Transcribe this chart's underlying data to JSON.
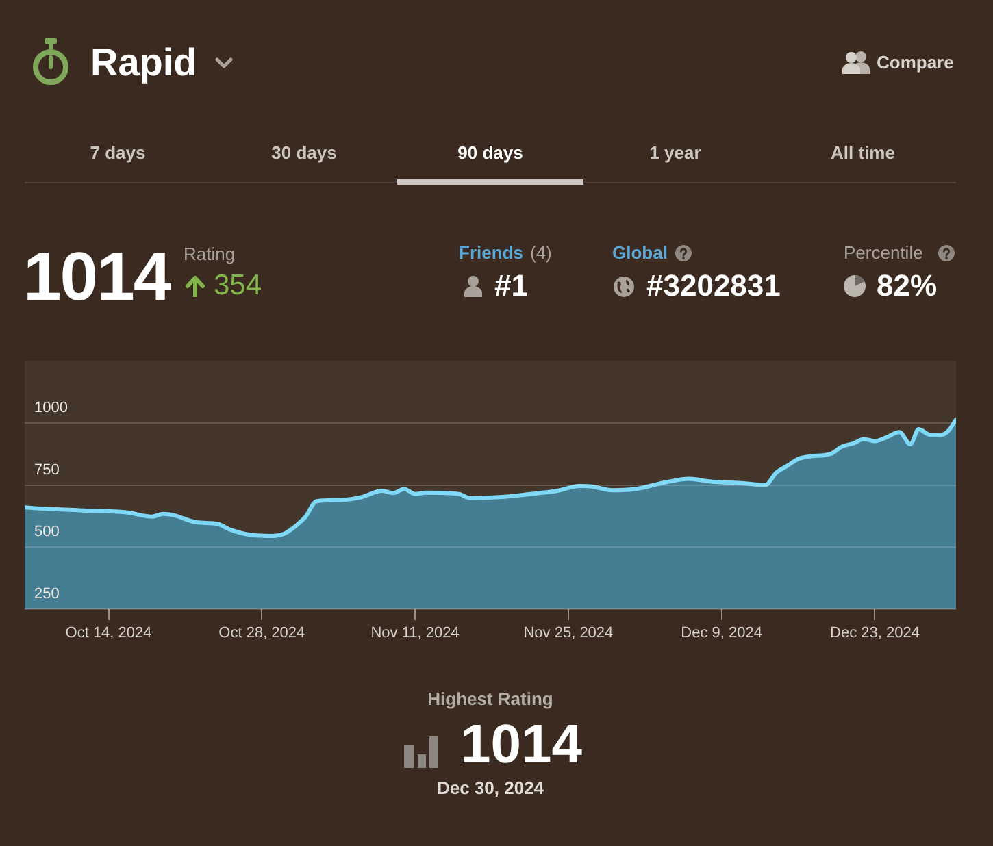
{
  "chart_data": {
    "type": "area",
    "title": "Rapid",
    "annotations": [
      "Compare",
      "7 days",
      "30 days",
      "90 days",
      "1 year",
      "All time",
      "1014",
      "Rating",
      "354",
      "Friends",
      "(4)",
      "#1",
      "Global",
      "#3202831",
      "Percentile",
      "82%",
      "Highest Rating",
      "1014",
      "Dec 30, 2024"
    ],
    "x": [
      "2024-10-06T08:00",
      "2024-10-08",
      "2024-10-12",
      "2024-10-16",
      "2024-10-17",
      "2024-10-18",
      "2024-10-19",
      "2024-10-20",
      "2024-10-22",
      "2024-10-24",
      "2024-10-25",
      "2024-10-27",
      "2024-10-29",
      "2024-10-30",
      "2024-10-31",
      "2024-11-01",
      "2024-11-02",
      "2024-11-04",
      "2024-11-06",
      "2024-11-08",
      "2024-11-09",
      "2024-11-10",
      "2024-11-11",
      "2024-11-12",
      "2024-11-15",
      "2024-11-16",
      "2024-11-19",
      "2024-11-22",
      "2024-11-24",
      "2024-11-26",
      "2024-11-27",
      "2024-11-29",
      "2024-12-01",
      "2024-12-04",
      "2024-12-06",
      "2024-12-08",
      "2024-12-11",
      "2024-12-13",
      "2024-12-14",
      "2024-12-15",
      "2024-12-16",
      "2024-12-17",
      "2024-12-19",
      "2024-12-20",
      "2024-12-21",
      "2024-12-22",
      "2024-12-23",
      "2024-12-24",
      "2024-12-25T06:00",
      "2024-12-26T06:00",
      "2024-12-27",
      "2024-12-28",
      "2024-12-29",
      "2024-12-29T18:00",
      "2024-12-30T10:00"
    ],
    "values": [
      660,
      655,
      647,
      638,
      628,
      623,
      634,
      628,
      600,
      593,
      572,
      549,
      545,
      553,
      582,
      623,
      685,
      689,
      700,
      727,
      718,
      734,
      714,
      719,
      714,
      697,
      702,
      716,
      727,
      746,
      745,
      729,
      733,
      762,
      775,
      764,
      757,
      750,
      800,
      827,
      855,
      865,
      876,
      905,
      917,
      935,
      927,
      941,
      963,
      914,
      975,
      953,
      952,
      970,
      1014
    ],
    "color": "#7fd8f6",
    "xlim": [
      "2024-10-06T08:00",
      "2024-12-30T10:00"
    ],
    "xticks": [
      {
        "value": "2024-10-14",
        "label": "Oct 14, 2024"
      },
      {
        "value": "2024-10-28",
        "label": "Oct 28, 2024"
      },
      {
        "value": "2024-11-11",
        "label": "Nov 11, 2024"
      },
      {
        "value": "2024-11-25",
        "label": "Nov 25, 2024"
      },
      {
        "value": "2024-12-09",
        "label": "Dec 9, 2024"
      },
      {
        "value": "2024-12-23",
        "label": "Dec 23, 2024"
      }
    ],
    "ylim": [
      250,
      1250
    ],
    "yticks": [
      250,
      500,
      750,
      1000
    ],
    "grid": "y",
    "marker": "none",
    "line_style": "solid"
  }
}
